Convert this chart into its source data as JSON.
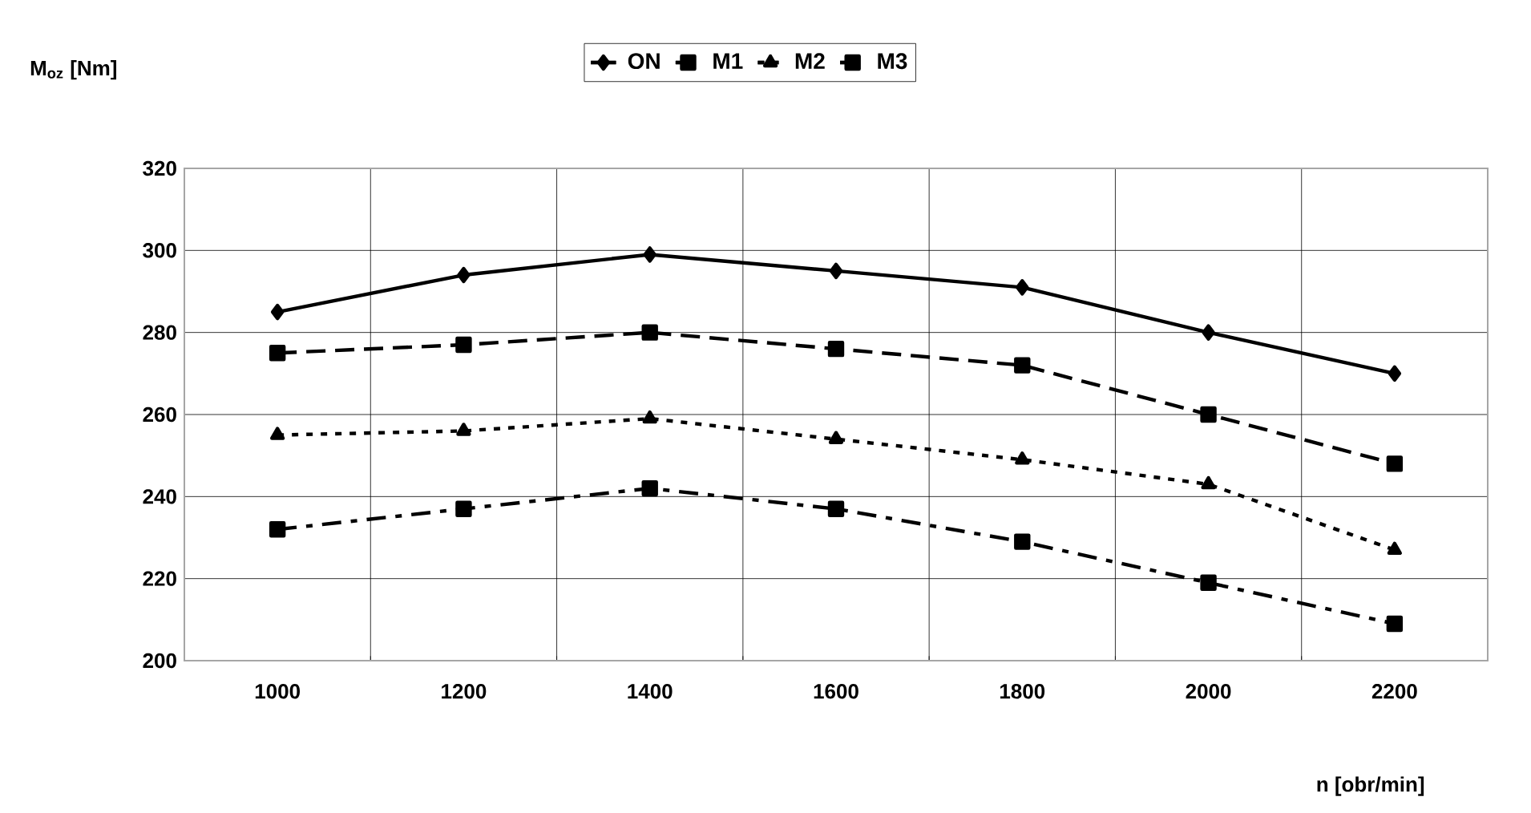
{
  "chart_data": {
    "type": "line",
    "xlabel": "n [obr/min]",
    "ylabel": "M$_{oz}$ [Nm]",
    "categories": [
      "1000",
      "1200",
      "1400",
      "1600",
      "1800",
      "2000",
      "2200"
    ],
    "series": [
      {
        "name": "ON",
        "color": "#000000",
        "marker": "diamond",
        "line_style": "solid",
        "values": [
          285,
          294,
          299,
          295,
          291,
          280,
          270
        ]
      },
      {
        "name": "M1",
        "color": "#000000",
        "marker": "square",
        "line_style": "dashed",
        "values": [
          275,
          277,
          280,
          276,
          272,
          260,
          248
        ]
      },
      {
        "name": "M2",
        "color": "#000000",
        "marker": "triangle",
        "line_style": "dotted",
        "values": [
          255,
          256,
          259,
          254,
          249,
          243,
          227
        ]
      },
      {
        "name": "M3",
        "color": "#000000",
        "marker": "square",
        "line_style": "dashdot",
        "values": [
          232,
          237,
          242,
          237,
          229,
          219,
          209
        ]
      }
    ],
    "ylim": [
      200,
      320
    ],
    "yticks": [
      200,
      220,
      240,
      260,
      280,
      300,
      320
    ],
    "grid": true,
    "legend": "top"
  }
}
